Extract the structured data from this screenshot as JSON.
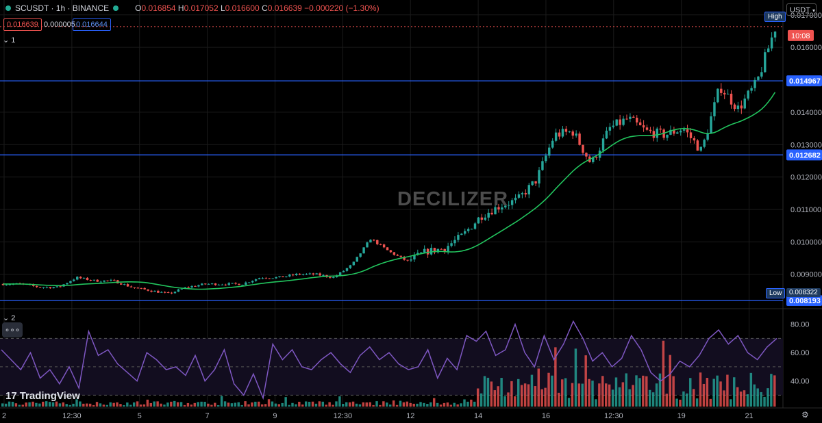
{
  "header": {
    "symbol": "SCUSDT · 1h · BINANCE",
    "o_label": "O",
    "o": "0.016854",
    "h_label": "H",
    "h": "0.017052",
    "l_label": "L",
    "l": "0.016600",
    "c_label": "C",
    "c": "0.016639",
    "change": "−0.000220 (−1.30%)",
    "bid": "0.016639",
    "spread": "0.000005",
    "ask": "0.016644",
    "indicator1": "⌄ 1",
    "indicator2": "⌄ 2",
    "more": "∘∘∘"
  },
  "currency": "USDT",
  "watermark": "DECILIZER",
  "logo": "TradingView",
  "chart_data": {
    "type": "candlestick",
    "price_axis_ticks": [
      0.017,
      0.016,
      0.014,
      0.013,
      0.012,
      0.011,
      0.01,
      0.009
    ],
    "price_axis_labels": [
      "0.017000",
      "0.016000",
      "0.014000",
      "0.013000",
      "0.012000",
      "0.011000",
      "0.010000",
      "0.009000"
    ],
    "ylim": [
      0.00796,
      0.01746
    ],
    "horizontal_levels": [
      {
        "value": 0.014967,
        "label": "0.014967",
        "color": "#2962ff"
      },
      {
        "value": 0.012682,
        "label": "0.012682",
        "color": "#2962ff"
      },
      {
        "value": 0.008193,
        "label": "0.008193",
        "color": "#2962ff"
      }
    ],
    "current_price": {
      "value": 0.016639,
      "label": "10:08",
      "color": "#ef5350"
    },
    "high_label": "High",
    "low_label": "Low",
    "low_value": "0.008322",
    "x_ticks": [
      "2",
      "12:30",
      "5",
      "7",
      "9",
      "12:30",
      "12",
      "14",
      "16",
      "12:30",
      "19",
      "21"
    ],
    "closes_approx": [
      0.0087,
      0.0087,
      0.0086,
      0.0086,
      0.0089,
      0.0088,
      0.0088,
      0.0086,
      0.0085,
      0.0084,
      0.0086,
      0.0087,
      0.0087,
      0.0087,
      0.0089,
      0.0089,
      0.009,
      0.009,
      0.0089,
      0.0093,
      0.0101,
      0.0097,
      0.0094,
      0.0097,
      0.0098,
      0.0102,
      0.0108,
      0.0111,
      0.0113,
      0.0119,
      0.0133,
      0.0134,
      0.0124,
      0.0135,
      0.0138,
      0.0134,
      0.0133,
      0.0135,
      0.0128,
      0.0148,
      0.0141,
      0.0149,
      0.0166
    ],
    "ma_color": "#22c55e",
    "up_color": "#26a69a",
    "down_color": "#ef5350",
    "rsi": {
      "labels": [
        "80.00",
        "60.00",
        "40.00"
      ],
      "ticks": [
        80,
        60,
        40
      ],
      "levels": [
        70,
        50,
        30
      ],
      "ylim": [
        22,
        89
      ],
      "line_color": "#7e57c2",
      "values_approx": [
        62,
        55,
        48,
        60,
        42,
        48,
        38,
        50,
        35,
        75,
        58,
        62,
        52,
        46,
        40,
        60,
        55,
        48,
        50,
        44,
        58,
        40,
        48,
        62,
        38,
        30,
        45,
        28,
        66,
        55,
        62,
        50,
        48,
        55,
        60,
        52,
        46,
        58,
        64,
        55,
        60,
        52,
        48,
        50,
        62,
        42,
        56,
        48,
        72,
        68,
        75,
        58,
        62,
        80,
        60,
        50,
        72,
        55,
        66,
        82,
        70,
        54,
        60,
        50,
        56,
        72,
        62,
        46,
        40,
        45,
        54,
        50,
        58,
        70,
        76,
        66,
        72,
        60,
        55,
        64,
        70
      ]
    }
  }
}
